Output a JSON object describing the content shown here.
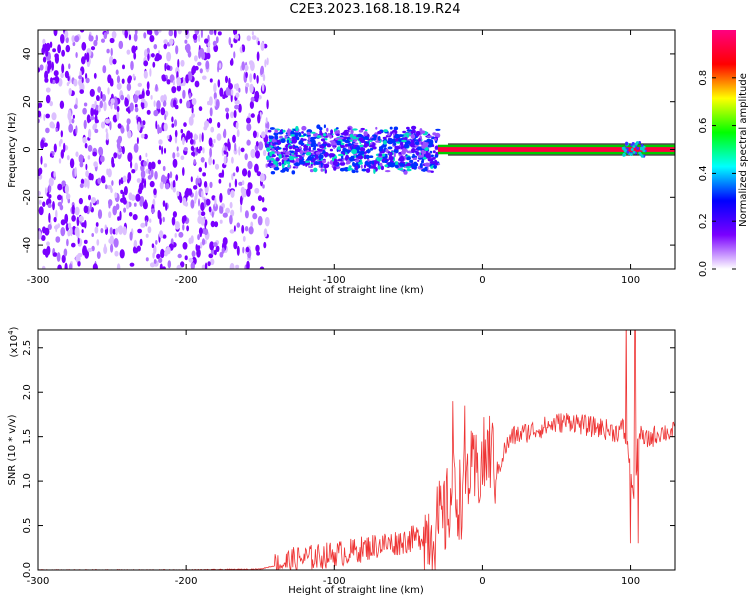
{
  "title": "C2E3.2023.168.18.19.R24",
  "chart_data": [
    {
      "type": "heatmap",
      "xlabel": "Height of straight line (km)",
      "ylabel": "Frequency (Hz)",
      "xlim": [
        -300,
        130
      ],
      "ylim": [
        -50,
        50
      ],
      "x_ticks": [
        -300,
        -200,
        -100,
        0,
        100
      ],
      "x_tick_labels": [
        "-300",
        "-200",
        "-100",
        "0",
        "100"
      ],
      "y_ticks": [
        -40,
        -20,
        0,
        20,
        40
      ],
      "y_tick_labels": [
        "-40",
        "-20",
        "0",
        "20",
        "40"
      ],
      "colorbar": {
        "label": "Normalized spectral amplitude",
        "range": [
          0.0,
          1.0
        ],
        "ticks": [
          0.0,
          0.2,
          0.4,
          0.6,
          0.8
        ],
        "tick_labels": [
          "0.0",
          "0.2",
          "0.4",
          "0.6",
          "0.8"
        ],
        "colors": [
          "#ffffff",
          "#7a00ff",
          "#0000ff",
          "#00ffff",
          "#00ff00",
          "#ffff00",
          "#ff0000",
          "#ff0080"
        ]
      },
      "regions": [
        {
          "x": [
            -300,
            -145
          ],
          "freq": [
            -50,
            50
          ],
          "amplitude": 0.1
        },
        {
          "x": [
            -145,
            -30
          ],
          "freq": [
            -10,
            10
          ],
          "amplitude": 0.25
        },
        {
          "x": [
            -30,
            130
          ],
          "freq": [
            -1,
            1
          ],
          "amplitude": 0.85
        },
        {
          "x": [
            95,
            110
          ],
          "freq": [
            -3,
            3
          ],
          "amplitude": 0.3
        }
      ]
    },
    {
      "type": "line",
      "xlabel": "Height of straight line (km)",
      "ylabel": "SNR (10 * v/v)",
      "y_multiplier_label": "(x10",
      "y_multiplier_exponent": "4",
      "xlim": [
        -300,
        130
      ],
      "ylim": [
        0,
        2.7
      ],
      "x_ticks": [
        -300,
        -200,
        -100,
        0,
        100
      ],
      "x_tick_labels": [
        "-300",
        "-200",
        "-100",
        "0",
        "100"
      ],
      "y_ticks": [
        0.0,
        0.5,
        1.0,
        1.5,
        2.0,
        2.5
      ],
      "y_tick_labels": [
        "0.0",
        "0.5",
        "1.0",
        "1.5",
        "2.0",
        "2.5"
      ],
      "color": "#ee3333",
      "x": [
        -300,
        -250,
        -200,
        -150,
        -140,
        -125,
        -110,
        -100,
        -90,
        -80,
        -70,
        -60,
        -50,
        -40,
        -30,
        -25,
        -20,
        -15,
        -10,
        -5,
        0,
        5,
        10,
        15,
        20,
        30,
        40,
        50,
        60,
        70,
        80,
        90,
        95,
        100,
        103,
        105,
        110,
        115,
        120,
        130
      ],
      "y": [
        0.0,
        0.0,
        0.0,
        0.01,
        0.05,
        0.12,
        0.15,
        0.18,
        0.2,
        0.24,
        0.28,
        0.3,
        0.34,
        0.38,
        0.5,
        0.6,
        0.9,
        0.8,
        1.1,
        1.05,
        1.2,
        1.35,
        1.1,
        1.35,
        1.5,
        1.55,
        1.6,
        1.65,
        1.68,
        1.62,
        1.6,
        1.55,
        1.6,
        1.2,
        0.6,
        1.55,
        1.45,
        1.5,
        1.55,
        1.55
      ],
      "noise_band": [
        {
          "x": [
            -140,
            -40
          ],
          "amplitude": 0.15
        },
        {
          "x": [
            -40,
            10
          ],
          "amplitude": 0.5
        },
        {
          "x": [
            10,
            130
          ],
          "amplitude": 0.12
        }
      ],
      "spikes": [
        {
          "x": -20,
          "y": 1.9
        },
        {
          "x": -12,
          "y": 1.85
        },
        {
          "x": 97,
          "y": 2.9
        },
        {
          "x": 100,
          "y": 0.3
        },
        {
          "x": 103,
          "y": 2.7
        },
        {
          "x": 105,
          "y": 0.3
        }
      ]
    }
  ]
}
